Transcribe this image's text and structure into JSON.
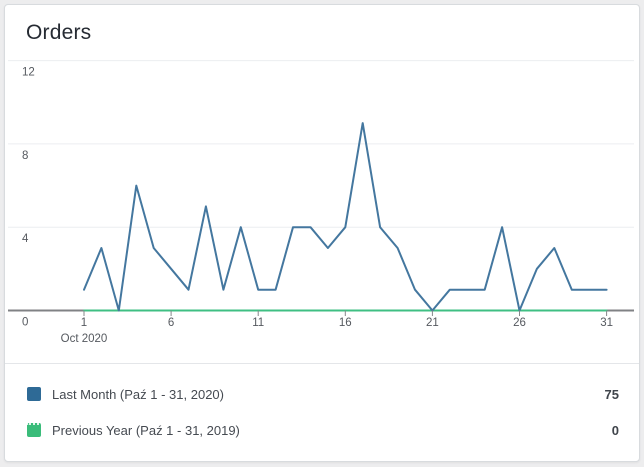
{
  "card": {
    "title": "Orders"
  },
  "chart_data": {
    "type": "line",
    "title": "Orders",
    "x": [
      1,
      2,
      3,
      4,
      5,
      6,
      7,
      8,
      9,
      10,
      11,
      12,
      13,
      14,
      15,
      16,
      17,
      18,
      19,
      20,
      21,
      22,
      23,
      24,
      25,
      26,
      27,
      28,
      29,
      30,
      31
    ],
    "x_tick_days": [
      1,
      6,
      11,
      16,
      21,
      26,
      31
    ],
    "x_axis_label": "Oct 2020",
    "y_ticks": [
      0,
      4,
      8,
      12
    ],
    "ylim": [
      0,
      12
    ],
    "grid": "horizontal",
    "legend_position": "bottom",
    "series": [
      {
        "name": "Last Month (Paź 1 - 31, 2020)",
        "total": 75,
        "line_color": "#44779f",
        "swatch_color": "#2e6a96",
        "values": [
          1,
          3,
          0,
          6,
          3,
          2,
          1,
          5,
          1,
          4,
          1,
          1,
          4,
          4,
          3,
          4,
          9,
          4,
          3,
          1,
          0,
          1,
          1,
          1,
          4,
          0,
          2,
          3,
          1,
          1,
          1
        ]
      },
      {
        "name": "Previous Year (Paź 1 - 31, 2019)",
        "total": 0,
        "line_color": "#3fbf83",
        "swatch_color": "#3abc7a",
        "values": [
          0,
          0,
          0,
          0,
          0,
          0,
          0,
          0,
          0,
          0,
          0,
          0,
          0,
          0,
          0,
          0,
          0,
          0,
          0,
          0,
          0,
          0,
          0,
          0,
          0,
          0,
          0,
          0,
          0,
          0,
          0
        ]
      }
    ],
    "axis_color": "#808285",
    "tick_color": "#85878a",
    "grid_color": "#eceef0",
    "tick_label_color": "#55595f"
  }
}
